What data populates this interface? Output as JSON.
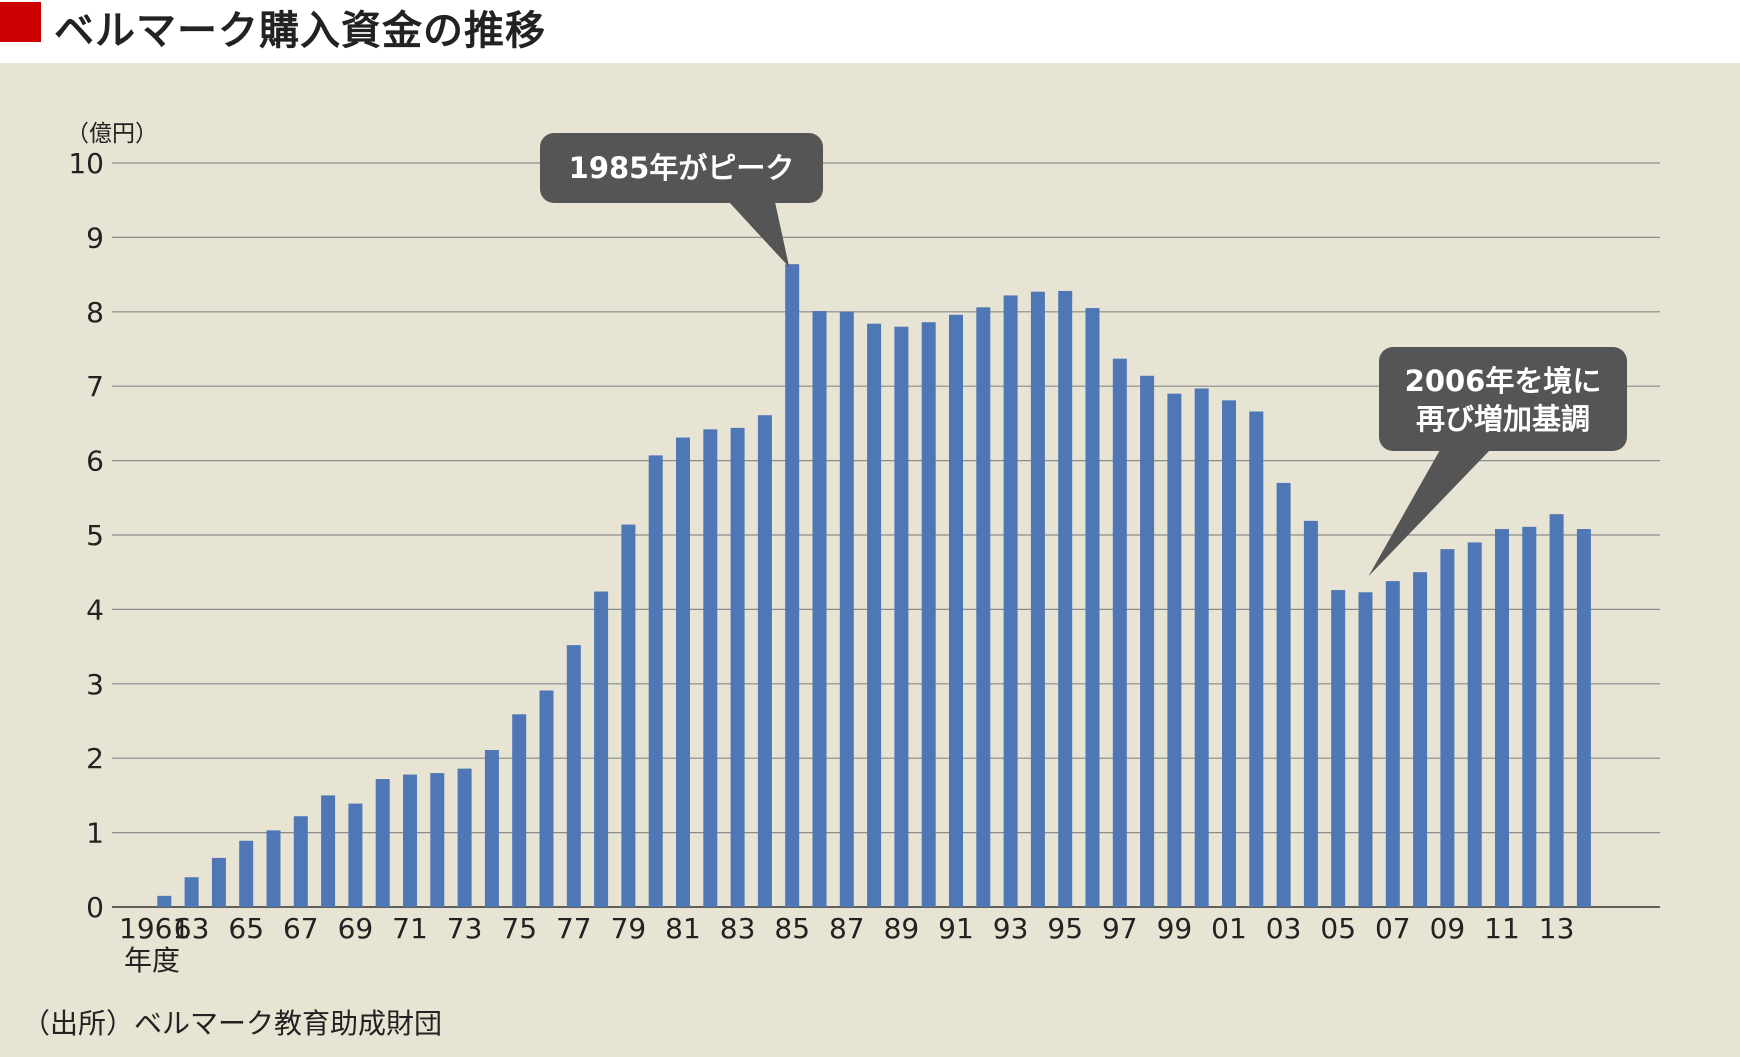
{
  "header": {
    "title": "ベルマーク購入資金の推移",
    "accent_color": "#cc0000"
  },
  "chart_data": {
    "type": "bar",
    "title": "ベルマーク購入資金の推移",
    "ylabel": "（億円）",
    "xlabel": "年度",
    "ylim": [
      0,
      10
    ],
    "yticks": [
      0,
      1,
      2,
      3,
      4,
      5,
      6,
      7,
      8,
      9,
      10
    ],
    "grid": true,
    "bar_color": "#4f77b5",
    "background_color": "#e8e4d4",
    "categories": [
      "1961",
      "1962",
      "1963",
      "1964",
      "1965",
      "1966",
      "1967",
      "1968",
      "1969",
      "1970",
      "1971",
      "1972",
      "1973",
      "1974",
      "1975",
      "1976",
      "1977",
      "1978",
      "1979",
      "1980",
      "1981",
      "1982",
      "1983",
      "1984",
      "1985",
      "1986",
      "1987",
      "1988",
      "1989",
      "1990",
      "1991",
      "1992",
      "1993",
      "1994",
      "1995",
      "1996",
      "1997",
      "1998",
      "1999",
      "2000",
      "2001",
      "2002",
      "2003",
      "2004",
      "2005",
      "2006",
      "2007",
      "2008",
      "2009",
      "2010",
      "2011",
      "2012",
      "2013",
      "2014"
    ],
    "x_tick_labels": [
      "1961",
      "",
      "63",
      "",
      "65",
      "",
      "67",
      "",
      "69",
      "",
      "71",
      "",
      "73",
      "",
      "75",
      "",
      "77",
      "",
      "79",
      "",
      "81",
      "",
      "83",
      "",
      "85",
      "",
      "87",
      "",
      "89",
      "",
      "91",
      "",
      "93",
      "",
      "95",
      "",
      "97",
      "",
      "99",
      "",
      "01",
      "",
      "03",
      "",
      "05",
      "",
      "07",
      "",
      "09",
      "",
      "11",
      "",
      "13",
      ""
    ],
    "values": [
      0.0,
      0.15,
      0.4,
      0.66,
      0.89,
      1.03,
      1.22,
      1.5,
      1.39,
      1.72,
      1.78,
      1.8,
      1.86,
      2.11,
      2.59,
      2.91,
      3.52,
      4.24,
      5.14,
      6.07,
      6.31,
      6.42,
      6.44,
      6.61,
      8.64,
      8.01,
      8.0,
      7.84,
      7.8,
      7.86,
      7.96,
      8.06,
      8.22,
      8.27,
      8.28,
      8.05,
      7.37,
      7.14,
      6.9,
      6.97,
      6.81,
      6.66,
      5.7,
      5.19,
      4.26,
      4.23,
      4.38,
      4.5,
      4.81,
      4.9,
      5.08,
      5.11,
      5.28,
      5.08
    ],
    "annotations": [
      {
        "lines": [
          "1985年がピーク"
        ],
        "category": "1985"
      },
      {
        "lines": [
          "2006年を境に",
          "再び増加基調"
        ],
        "category": "2006"
      }
    ]
  },
  "source": "（出所）ベルマーク教育助成財団"
}
